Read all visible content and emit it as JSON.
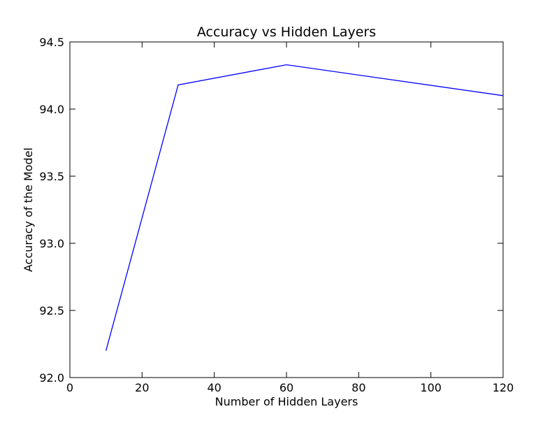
{
  "chart_data": {
    "type": "line",
    "title": "Accuracy vs Hidden Layers",
    "xlabel": "Number of Hidden Layers",
    "ylabel": "Accuracy of the Model",
    "xlim": [
      0,
      120
    ],
    "ylim": [
      92.0,
      94.5
    ],
    "x_ticks": [
      "0",
      "20",
      "40",
      "60",
      "80",
      "100",
      "120"
    ],
    "y_ticks": [
      "92.0",
      "92.5",
      "93.0",
      "93.5",
      "94.0",
      "94.5"
    ],
    "grid": false,
    "series": [
      {
        "color": "#0000ff",
        "x": [
          10,
          30,
          60,
          120
        ],
        "y": [
          92.2,
          94.18,
          94.33,
          94.1
        ]
      }
    ]
  }
}
